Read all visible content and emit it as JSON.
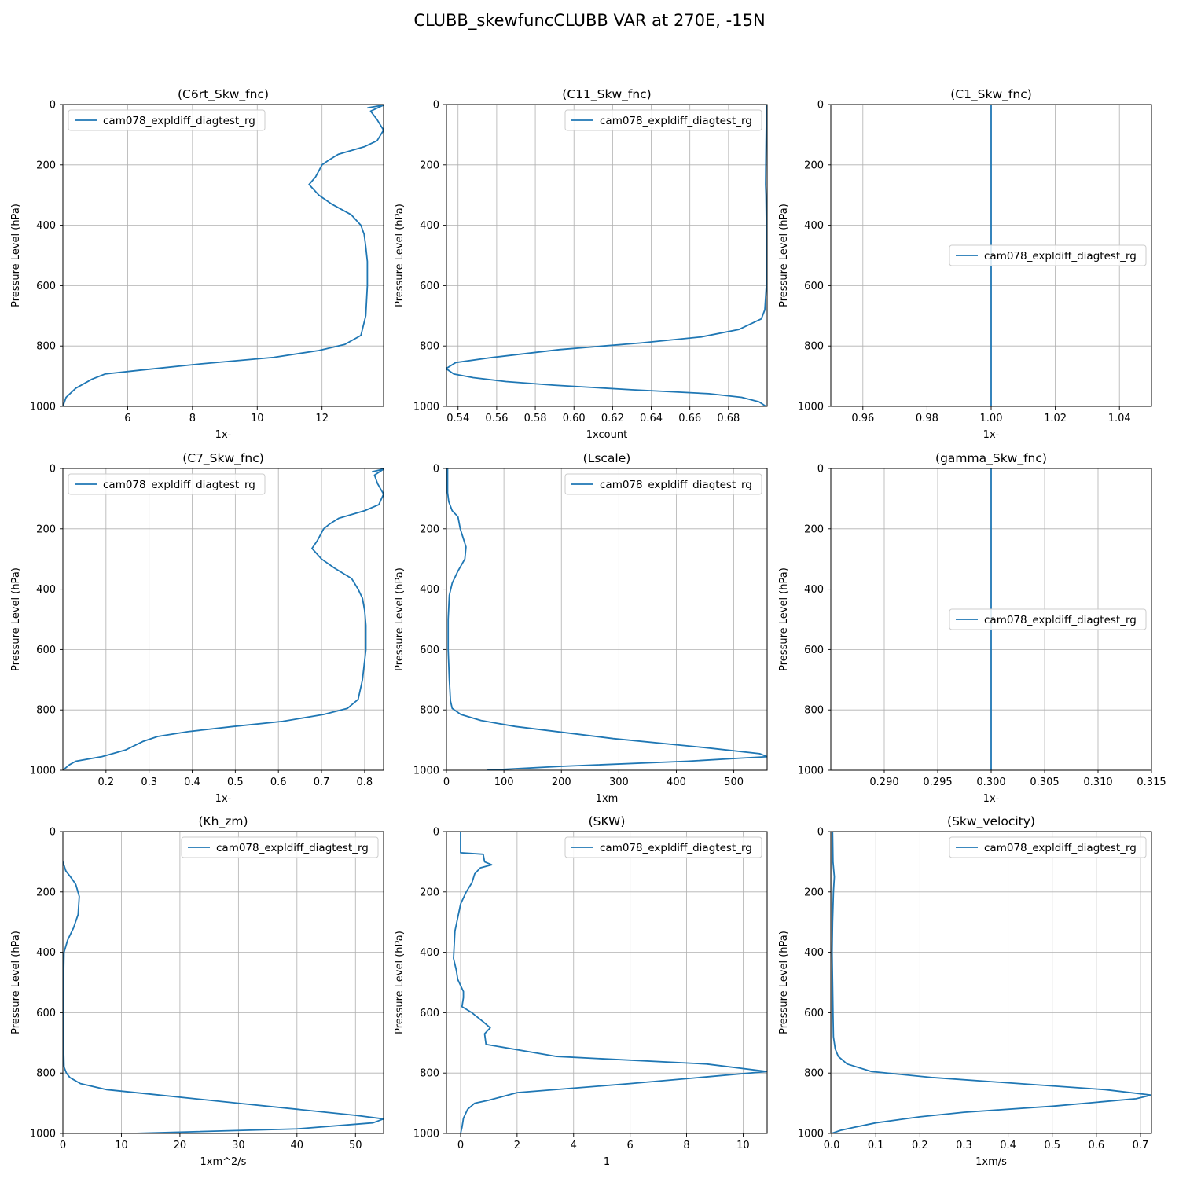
{
  "figure": {
    "title": "CLUBB_skewfuncCLUBB VAR at 270E, -15N"
  },
  "chart_data": [
    {
      "type": "line",
      "title": "(C6rt_Skw_fnc)",
      "xlabel": "1x-",
      "ylabel": "Pressure Level (hPa)",
      "xlim": [
        4.0,
        13.9
      ],
      "ylim": [
        1000,
        0
      ],
      "xticks": [
        6,
        8,
        10,
        12
      ],
      "xtick_labels": [
        "6",
        "8",
        "10",
        "12"
      ],
      "yticks": [
        0,
        200,
        400,
        600,
        800,
        1000
      ],
      "ytick_labels": [
        "0",
        "200",
        "400",
        "600",
        "800",
        "1000"
      ],
      "grid": true,
      "legend_position": "upper-left",
      "series": [
        {
          "name": "cam078_expldiff_diagtest_rg",
          "x": [
            13.4,
            13.9,
            13.5,
            13.7,
            13.9,
            13.7,
            13.3,
            12.5,
            12.2,
            12.0,
            11.8,
            11.6,
            11.9,
            12.3,
            12.9,
            13.2,
            13.3,
            13.35,
            13.4,
            13.4,
            13.35,
            13.2,
            12.7,
            11.9,
            10.5,
            8.2,
            6.4,
            5.3,
            4.9,
            4.4,
            4.1,
            4.0
          ],
          "y": [
            11,
            2,
            22,
            50,
            85,
            120,
            140,
            165,
            185,
            200,
            240,
            265,
            300,
            330,
            365,
            400,
            430,
            470,
            520,
            600,
            700,
            765,
            795,
            815,
            838,
            860,
            880,
            893,
            910,
            940,
            970,
            1000
          ]
        }
      ]
    },
    {
      "type": "line",
      "title": "(C11_Skw_fnc)",
      "xlabel": "1xcount",
      "ylabel": "Pressure Level (hPa)",
      "xlim": [
        0.534,
        0.7
      ],
      "ylim": [
        1000,
        0
      ],
      "xticks": [
        0.54,
        0.56,
        0.58,
        0.6,
        0.62,
        0.64,
        0.66,
        0.68
      ],
      "xtick_labels": [
        "0.54",
        "0.56",
        "0.58",
        "0.60",
        "0.62",
        "0.64",
        "0.66",
        "0.68"
      ],
      "yticks": [
        0,
        200,
        400,
        600,
        800,
        1000
      ],
      "ytick_labels": [
        "0",
        "200",
        "400",
        "600",
        "800",
        "1000"
      ],
      "grid": true,
      "legend_position": "upper-right",
      "series": [
        {
          "name": "cam078_expldiff_diagtest_rg",
          "x": [
            0.6997,
            0.6995,
            0.6993,
            0.6992,
            0.6994,
            0.6996,
            0.6997,
            0.6996,
            0.6988,
            0.697,
            0.6855,
            0.6658,
            0.6345,
            0.5925,
            0.5578,
            0.5388,
            0.5338,
            0.5378,
            0.5478,
            0.5648,
            0.5898,
            0.6298,
            0.6698,
            0.6868,
            0.6958,
            0.6994
          ],
          "y": [
            0,
            100,
            200,
            265,
            300,
            400,
            500,
            600,
            680,
            710,
            745,
            770,
            790,
            812,
            838,
            855,
            875,
            893,
            905,
            918,
            930,
            945,
            958,
            970,
            985,
            1000
          ]
        }
      ]
    },
    {
      "type": "line",
      "title": "(C1_Skw_fnc)",
      "xlabel": "1x-",
      "ylabel": "Pressure Level (hPa)",
      "xlim": [
        0.95,
        1.05
      ],
      "ylim": [
        1000,
        0
      ],
      "xticks": [
        0.96,
        0.98,
        1.0,
        1.02,
        1.04
      ],
      "xtick_labels": [
        "0.96",
        "0.98",
        "1.00",
        "1.02",
        "1.04"
      ],
      "yticks": [
        0,
        200,
        400,
        600,
        800,
        1000
      ],
      "ytick_labels": [
        "0",
        "200",
        "400",
        "600",
        "800",
        "1000"
      ],
      "grid": true,
      "legend_position": "center-right",
      "series": [
        {
          "name": "cam078_expldiff_diagtest_rg",
          "x": [
            1.0,
            1.0
          ],
          "y": [
            0,
            1000
          ]
        }
      ]
    },
    {
      "type": "line",
      "title": "(C7_Skw_fnc)",
      "xlabel": "1x-",
      "ylabel": "Pressure Level (hPa)",
      "xlim": [
        0.1,
        0.844
      ],
      "ylim": [
        1000,
        0
      ],
      "xticks": [
        0.2,
        0.3,
        0.4,
        0.5,
        0.6,
        0.7,
        0.8
      ],
      "xtick_labels": [
        "0.2",
        "0.3",
        "0.4",
        "0.5",
        "0.6",
        "0.7",
        "0.8"
      ],
      "yticks": [
        0,
        200,
        400,
        600,
        800,
        1000
      ],
      "ytick_labels": [
        "0",
        "200",
        "400",
        "600",
        "800",
        "1000"
      ],
      "grid": true,
      "legend_position": "upper-left",
      "series": [
        {
          "name": "cam078_expldiff_diagtest_rg",
          "x": [
            0.817,
            0.844,
            0.823,
            0.83,
            0.844,
            0.833,
            0.8,
            0.74,
            0.718,
            0.705,
            0.69,
            0.678,
            0.7,
            0.73,
            0.77,
            0.785,
            0.795,
            0.8,
            0.803,
            0.803,
            0.795,
            0.785,
            0.76,
            0.705,
            0.61,
            0.495,
            0.39,
            0.32,
            0.285,
            0.245,
            0.19,
            0.13,
            0.115,
            0.1
          ],
          "y": [
            11,
            2,
            22,
            50,
            85,
            120,
            140,
            165,
            185,
            200,
            240,
            265,
            300,
            330,
            365,
            400,
            430,
            470,
            520,
            600,
            700,
            765,
            795,
            815,
            838,
            855,
            872,
            888,
            905,
            933,
            955,
            970,
            982,
            1000
          ]
        }
      ]
    },
    {
      "type": "line",
      "title": "(Lscale)",
      "xlabel": "1xm",
      "ylabel": "Pressure Level (hPa)",
      "xlim": [
        0,
        558
      ],
      "ylim": [
        1000,
        0
      ],
      "xticks": [
        0,
        100,
        200,
        300,
        400,
        500
      ],
      "xtick_labels": [
        "0",
        "100",
        "200",
        "300",
        "400",
        "500"
      ],
      "yticks": [
        0,
        200,
        400,
        600,
        800,
        1000
      ],
      "ytick_labels": [
        "0",
        "200",
        "400",
        "600",
        "800",
        "1000"
      ],
      "grid": true,
      "legend_position": "upper-right",
      "series": [
        {
          "name": "cam078_expldiff_diagtest_rg",
          "x": [
            2,
            2,
            4,
            10,
            20,
            24,
            34,
            32,
            20,
            10,
            5,
            3,
            3,
            5,
            7,
            10,
            25,
            60,
            120,
            290,
            450,
            545,
            558,
            510,
            420,
            200,
            70
          ],
          "y": [
            0,
            80,
            110,
            140,
            160,
            200,
            260,
            300,
            340,
            380,
            420,
            500,
            600,
            700,
            770,
            795,
            815,
            835,
            855,
            895,
            925,
            945,
            955,
            960,
            970,
            987,
            1000
          ]
        }
      ]
    },
    {
      "type": "line",
      "title": "(gamma_Skw_fnc)",
      "xlabel": "1x-",
      "ylabel": "Pressure Level (hPa)",
      "xlim": [
        0.285,
        0.315
      ],
      "ylim": [
        1000,
        0
      ],
      "xticks": [
        0.29,
        0.295,
        0.3,
        0.305,
        0.31,
        0.315
      ],
      "xtick_labels": [
        "0.290",
        "0.295",
        "0.300",
        "0.305",
        "0.310",
        "0.315"
      ],
      "yticks": [
        0,
        200,
        400,
        600,
        800,
        1000
      ],
      "ytick_labels": [
        "0",
        "200",
        "400",
        "600",
        "800",
        "1000"
      ],
      "grid": true,
      "legend_position": "center-right",
      "series": [
        {
          "name": "cam078_expldiff_diagtest_rg",
          "x": [
            0.3,
            0.3
          ],
          "y": [
            0,
            1000
          ]
        }
      ]
    },
    {
      "type": "line",
      "title": "(Kh_zm)",
      "xlabel": "1xm^2/s",
      "ylabel": "Pressure Level (hPa)",
      "xlim": [
        0,
        54.8
      ],
      "ylim": [
        1000,
        0
      ],
      "xticks": [
        0,
        10,
        20,
        30,
        40,
        50
      ],
      "xtick_labels": [
        "0",
        "10",
        "20",
        "30",
        "40",
        "50"
      ],
      "yticks": [
        0,
        200,
        400,
        600,
        800,
        1000
      ],
      "ytick_labels": [
        "0",
        "200",
        "400",
        "600",
        "800",
        "1000"
      ],
      "grid": true,
      "legend_position": "upper-right",
      "series": [
        {
          "name": "cam078_expldiff_diagtest_rg",
          "x": [
            0,
            0.5,
            1.5,
            2.2,
            2.8,
            2.6,
            1.8,
            0.8,
            0.2,
            0.1,
            0.1,
            0.2,
            0.6,
            1.2,
            3,
            7.5,
            15,
            30,
            50,
            54.8,
            53,
            40,
            12
          ],
          "y": [
            100,
            130,
            155,
            175,
            215,
            275,
            320,
            360,
            400,
            500,
            700,
            780,
            800,
            815,
            835,
            855,
            870,
            900,
            940,
            952,
            965,
            985,
            1000
          ]
        }
      ]
    },
    {
      "type": "line",
      "title": "(SKW)",
      "xlabel": "1",
      "ylabel": "Pressure Level (hPa)",
      "xlim": [
        -0.5,
        10.85
      ],
      "ylim": [
        1000,
        0
      ],
      "xticks": [
        0,
        2,
        4,
        6,
        8,
        10
      ],
      "xtick_labels": [
        "0",
        "2",
        "4",
        "6",
        "8",
        "10"
      ],
      "yticks": [
        0,
        200,
        400,
        600,
        800,
        1000
      ],
      "ytick_labels": [
        "0",
        "200",
        "400",
        "600",
        "800",
        "1000"
      ],
      "grid": true,
      "legend_position": "upper-right",
      "series": [
        {
          "name": "cam078_expldiff_diagtest_rg",
          "x": [
            0,
            0,
            0.8,
            0.85,
            1.1,
            0.7,
            0.5,
            0.4,
            0.2,
            0,
            -0.2,
            -0.25,
            -0.15,
            -0.1,
            0.1,
            0.1,
            0.05,
            0.4,
            0.8,
            1.05,
            0.85,
            0.9,
            3.4,
            8.7,
            10.85,
            6,
            2,
            1,
            0.5,
            0.25,
            0.1,
            0.05,
            0
          ],
          "y": [
            0,
            70,
            75,
            100,
            110,
            120,
            140,
            170,
            200,
            240,
            330,
            420,
            460,
            490,
            530,
            550,
            580,
            600,
            630,
            650,
            670,
            705,
            745,
            770,
            795,
            835,
            865,
            890,
            900,
            920,
            950,
            980,
            1000
          ]
        }
      ]
    },
    {
      "type": "line",
      "title": "(Skw_velocity)",
      "xlabel": "1xm/s",
      "ylabel": "Pressure Level (hPa)",
      "xlim": [
        -0.002,
        0.725
      ],
      "ylim": [
        1000,
        0
      ],
      "xticks": [
        0.0,
        0.1,
        0.2,
        0.3,
        0.4,
        0.5,
        0.6,
        0.7
      ],
      "xtick_labels": [
        "0.0",
        "0.1",
        "0.2",
        "0.3",
        "0.4",
        "0.5",
        "0.6",
        "0.7"
      ],
      "yticks": [
        0,
        200,
        400,
        600,
        800,
        1000
      ],
      "ytick_labels": [
        "0",
        "200",
        "400",
        "600",
        "800",
        "1000"
      ],
      "grid": true,
      "legend_position": "upper-right",
      "series": [
        {
          "name": "cam078_expldiff_diagtest_rg",
          "x": [
            0.002,
            0.003,
            0.006,
            0.004,
            0.002,
            0.001,
            0.002,
            0.003,
            0.004,
            0.008,
            0.015,
            0.035,
            0.09,
            0.23,
            0.62,
            0.725,
            0.69,
            0.5,
            0.3,
            0.2,
            0.15,
            0.1,
            0.05,
            0.02,
            0
          ],
          "y": [
            0,
            100,
            150,
            200,
            300,
            400,
            500,
            600,
            680,
            720,
            745,
            770,
            795,
            815,
            855,
            873,
            885,
            910,
            930,
            945,
            955,
            965,
            980,
            990,
            1000
          ]
        }
      ]
    }
  ]
}
